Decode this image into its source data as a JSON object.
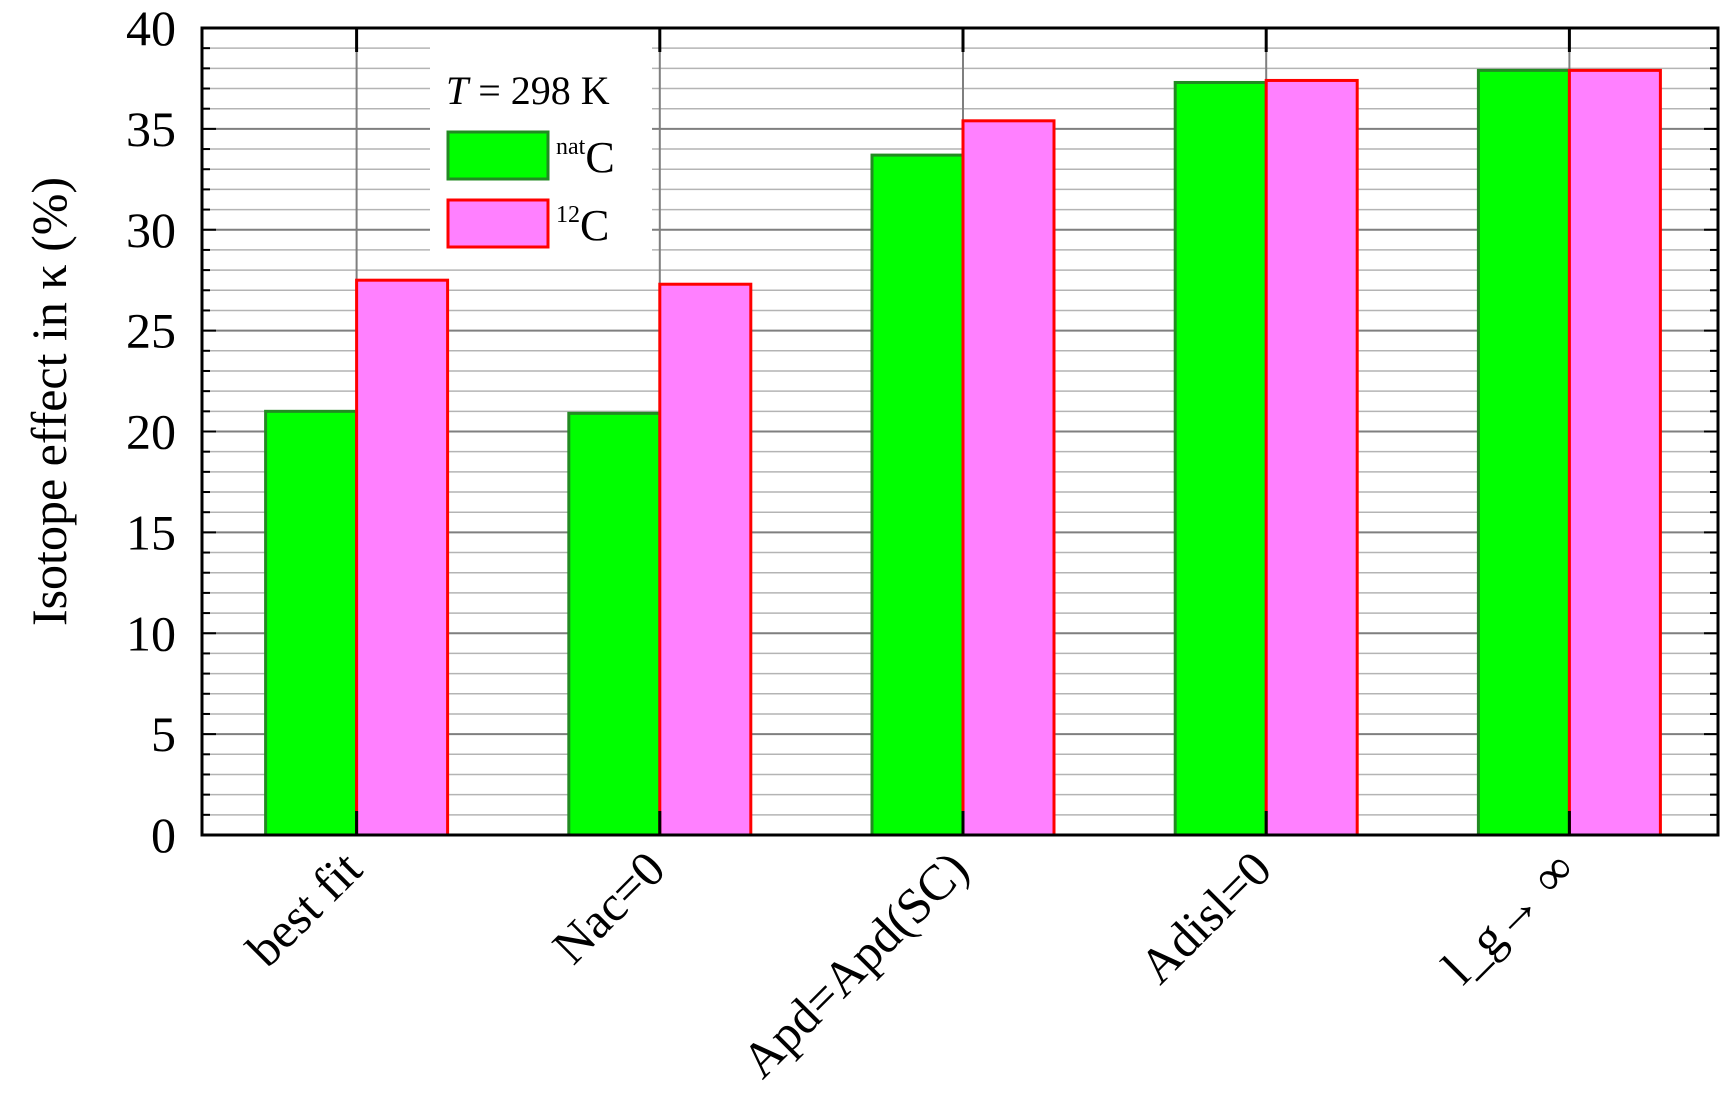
{
  "chart_data": {
    "type": "bar",
    "title": "",
    "xlabel": "",
    "ylabel": "Isotope effect in κ (%)",
    "ylim": [
      0,
      40
    ],
    "yticks": [
      "0",
      "5",
      "10",
      "15",
      "20",
      "25",
      "30",
      "35",
      "40"
    ],
    "grid": true,
    "categories": [
      "best fit",
      "Nac=0",
      "Apd=Apd(SC)",
      "Adisl=0",
      "l_g→ ∞"
    ],
    "series": [
      {
        "name": "natC",
        "name_sup": "nat",
        "name_base": "C",
        "color": "#00ff00",
        "border": "#228b22",
        "values": [
          21.0,
          20.9,
          33.7,
          37.3,
          37.9
        ]
      },
      {
        "name": "12C",
        "name_sup": "12",
        "name_base": "C",
        "color": "#ff80ff",
        "border": "#ff0000",
        "values": [
          27.5,
          27.3,
          35.4,
          37.4,
          37.9
        ]
      }
    ],
    "legend": {
      "title_var": "T",
      "title_rest": " = 298 K",
      "placement": "top-left"
    }
  }
}
